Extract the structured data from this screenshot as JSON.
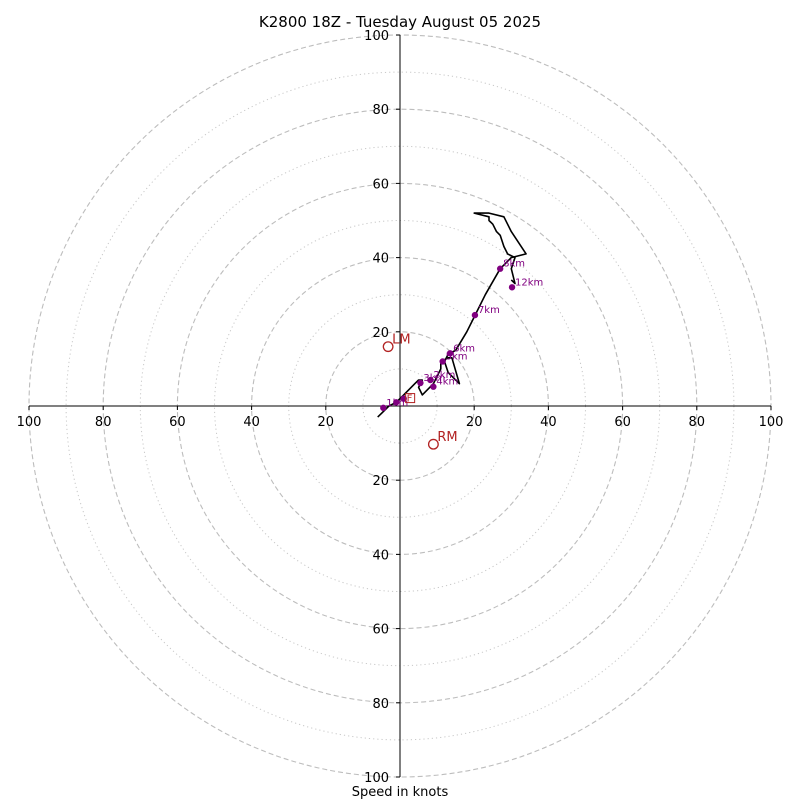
{
  "chart_data": {
    "type": "hodograph",
    "title": "K2800 18Z - Tuesday August 05 2025",
    "xlabel": "Speed in knots",
    "ring_max": 100,
    "major_rings": [
      20,
      40,
      60,
      80,
      100
    ],
    "minor_rings": [
      10,
      30,
      50,
      70,
      90
    ],
    "axis_tick_labels": [
      "100",
      "80",
      "60",
      "40",
      "20",
      "20",
      "40",
      "60",
      "80",
      "100"
    ],
    "axis_ticks": {
      "x_left": [
        "100",
        "80",
        "60",
        "40",
        "20"
      ],
      "x_right": [
        "20",
        "40",
        "60",
        "80",
        "100"
      ],
      "y_top": [
        "100",
        "80",
        "60",
        "40",
        "20"
      ],
      "y_bottom": [
        "20",
        "40",
        "60",
        "80",
        "100"
      ]
    },
    "line_color": "#000000",
    "marker_color": "#800080",
    "motion_color": "#b22222",
    "hodograph_line": [
      [
        -6,
        -3
      ],
      [
        -3,
        0
      ],
      [
        -1,
        1
      ],
      [
        0,
        2
      ],
      [
        1,
        3
      ],
      [
        2,
        4
      ],
      [
        3,
        5
      ],
      [
        4,
        6
      ],
      [
        5,
        7
      ],
      [
        6,
        7
      ],
      [
        5,
        5
      ],
      [
        6,
        3
      ],
      [
        7,
        4
      ],
      [
        8,
        5
      ],
      [
        9,
        6
      ],
      [
        10,
        8
      ],
      [
        11,
        10
      ],
      [
        11,
        12
      ],
      [
        13,
        13
      ],
      [
        14,
        13
      ],
      [
        16,
        6
      ],
      [
        13,
        9
      ],
      [
        12,
        12
      ],
      [
        13,
        14
      ],
      [
        15,
        15
      ],
      [
        18,
        20
      ],
      [
        20,
        24
      ],
      [
        23,
        30
      ],
      [
        27,
        37
      ],
      [
        30,
        40
      ],
      [
        34,
        41
      ],
      [
        30,
        47
      ],
      [
        28,
        51
      ],
      [
        24,
        52
      ],
      [
        20,
        52
      ],
      [
        24,
        51
      ],
      [
        24,
        50
      ],
      [
        25,
        49
      ],
      [
        26,
        47
      ],
      [
        27,
        46
      ],
      [
        28,
        43
      ],
      [
        29,
        41
      ],
      [
        31,
        40
      ],
      [
        30,
        37
      ],
      [
        31,
        33
      ],
      [
        30,
        34
      ]
    ],
    "height_markers": [
      {
        "label": "1km",
        "u": -4.5,
        "v": -0.5
      },
      {
        "label": "2km",
        "u": 8.2,
        "v": 7.0
      },
      {
        "label": "3km",
        "u": 5.5,
        "v": 6.2
      },
      {
        "label": "4km",
        "u": 9.0,
        "v": 5.2
      },
      {
        "label": "5km",
        "u": 11.5,
        "v": 12.0
      },
      {
        "label": "6km",
        "u": 13.5,
        "v": 14.2
      },
      {
        "label": "7km",
        "u": 20.2,
        "v": 24.5
      },
      {
        "label": "8km",
        "u": 27.0,
        "v": 37.0
      },
      {
        "label": "12km",
        "u": 30.2,
        "v": 32.0
      }
    ],
    "extra_points": [
      {
        "u": -1,
        "v": 1
      },
      {
        "u": 1,
        "v": 2
      }
    ],
    "surface_label": "F",
    "storm_motion": [
      {
        "label": "LM",
        "u": -3.2,
        "v": 16.0
      },
      {
        "label": "RM",
        "u": 9.0,
        "v": -10.3
      }
    ],
    "grid": true
  }
}
